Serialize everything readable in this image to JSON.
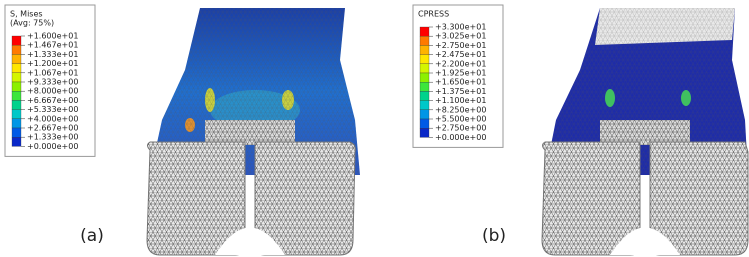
{
  "panels": [
    {
      "label": "(a)",
      "legend": {
        "title": [
          "S, Mises",
          "(Avg: 75%)"
        ],
        "entries": [
          "+1.600e+01",
          "+1.467e+01",
          "+1.333e+01",
          "+1.200e+01",
          "+1.067e+01",
          "+9.333e+00",
          "+8.000e+00",
          "+6.667e+00",
          "+5.333e+00",
          "+4.000e+00",
          "+2.667e+00",
          "+1.333e+00",
          "+0.000e+00"
        ],
        "colors": [
          "#ff0000",
          "#ff7a00",
          "#ffb300",
          "#ffe600",
          "#d4f500",
          "#8cf000",
          "#3ce63c",
          "#00d28c",
          "#00c8c8",
          "#0096e6",
          "#005ae6",
          "#0a28c8",
          "#1e1eb4"
        ]
      }
    },
    {
      "label": "(b)",
      "legend": {
        "title": [
          "CPRESS"
        ],
        "entries": [
          "+3.300e+01",
          "+3.025e+01",
          "+2.750e+01",
          "+2.475e+01",
          "+2.200e+01",
          "+1.925e+01",
          "+1.650e+01",
          "+1.375e+01",
          "+1.100e+01",
          "+8.250e+00",
          "+5.500e+00",
          "+2.750e+00",
          "+0.000e+00"
        ],
        "colors": [
          "#ff0000",
          "#ff7a00",
          "#ffb300",
          "#ffe600",
          "#d4f500",
          "#8cf000",
          "#3ce63c",
          "#00d28c",
          "#00c8c8",
          "#0096e6",
          "#005ae6",
          "#0a28c8",
          "#1e1eb4"
        ]
      }
    }
  ]
}
